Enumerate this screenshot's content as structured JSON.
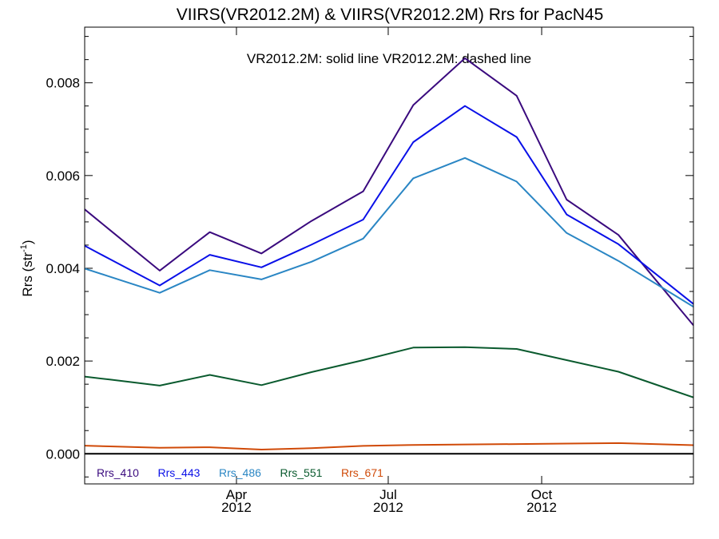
{
  "chart_data": {
    "type": "line",
    "title": "VIIRS(VR2012.2M) & VIIRS(VR2012.2M)  Rrs for PacN45",
    "subtitle": "VR2012.2M: solid line   VR2012.2M: dashed line",
    "ylabel_main": "Rrs (str",
    "ylabel_sup": "-1",
    "ylabel_close": ")",
    "x": [
      "2012-01-16",
      "2012-02-15",
      "2012-03-16",
      "2012-04-16",
      "2012-05-16",
      "2012-06-16",
      "2012-07-16",
      "2012-08-16",
      "2012-09-16",
      "2012-10-16",
      "2012-11-16",
      "2012-12-16"
    ],
    "xlim": [
      "2012-01-01",
      "2012-12-31"
    ],
    "ylim": [
      -0.00065,
      0.0092
    ],
    "y_ticks": [
      {
        "value": 0.0,
        "label": "0.000"
      },
      {
        "value": 0.002,
        "label": "0.002"
      },
      {
        "value": 0.004,
        "label": "0.004"
      },
      {
        "value": 0.006,
        "label": "0.006"
      },
      {
        "value": 0.008,
        "label": "0.008"
      }
    ],
    "x_ticks": [
      {
        "date": "2012-04-01",
        "month": "Apr",
        "year": "2012"
      },
      {
        "date": "2012-07-01",
        "month": "Jul",
        "year": "2012"
      },
      {
        "date": "2012-10-01",
        "month": "Oct",
        "year": "2012"
      }
    ],
    "zero_line": true,
    "grid": false,
    "legend_position": "bottom-left",
    "series": [
      {
        "name": "Rrs_410",
        "color": "#3a0a7e",
        "values": [
          0.00483,
          0.00395,
          0.00478,
          0.00432,
          0.00502,
          0.00566,
          0.00752,
          0.00853,
          0.00772,
          0.00548,
          0.00472,
          0.00342
        ]
      },
      {
        "name": "Rrs_443",
        "color": "#0a10e8",
        "values": [
          0.0042,
          0.00363,
          0.00429,
          0.00402,
          0.00451,
          0.00505,
          0.00672,
          0.0075,
          0.00683,
          0.00516,
          0.00452,
          0.00366
        ]
      },
      {
        "name": "Rrs_486",
        "color": "#2a86c4",
        "values": [
          0.00382,
          0.00347,
          0.00396,
          0.00376,
          0.00414,
          0.00464,
          0.00594,
          0.00638,
          0.00587,
          0.00476,
          0.00416,
          0.0035
        ]
      },
      {
        "name": "Rrs_551",
        "color": "#0a5a2e",
        "values": [
          0.0016,
          0.00147,
          0.0017,
          0.00148,
          0.00176,
          0.00202,
          0.00229,
          0.0023,
          0.00226,
          0.00202,
          0.00177,
          0.0014
        ]
      },
      {
        "name": "Rrs_671",
        "color": "#d04a08",
        "values": [
          0.00016,
          0.00013,
          0.00014,
          9e-05,
          0.00012,
          0.00017,
          0.00019,
          0.0002,
          0.00021,
          0.00022,
          0.00023,
          0.0002
        ]
      }
    ]
  }
}
